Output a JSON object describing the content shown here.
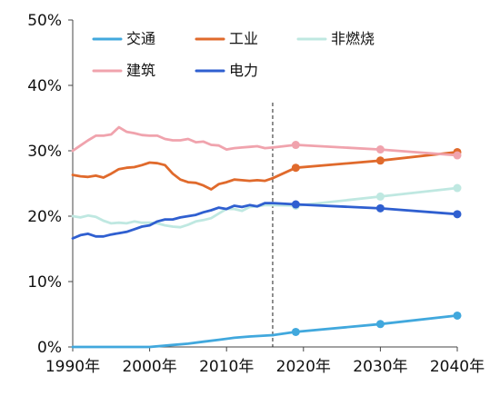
{
  "chart_data": {
    "type": "line",
    "title": "",
    "xlabel": "",
    "ylabel": "",
    "x_ticks": [
      "1990年",
      "2000年",
      "2010年",
      "2020年",
      "2030年",
      "2040年"
    ],
    "y_ticks": [
      "0%",
      "10%",
      "20%",
      "30%",
      "40%",
      "50%"
    ],
    "xlim": [
      1990,
      2040
    ],
    "ylim": [
      0,
      50
    ],
    "grid": false,
    "legend": "top",
    "projection_start": 2016,
    "series": [
      {
        "name": "交通",
        "color": "#41a8dd",
        "historical": [
          [
            1990,
            0
          ],
          [
            1995,
            0
          ],
          [
            2000,
            0
          ],
          [
            2003,
            0.3
          ],
          [
            2005,
            0.5
          ],
          [
            2007,
            0.8
          ],
          [
            2009,
            1.1
          ],
          [
            2011,
            1.4
          ],
          [
            2013,
            1.6
          ],
          [
            2016,
            1.8
          ]
        ],
        "projection": [
          [
            2016,
            1.8
          ],
          [
            2019,
            2.3
          ],
          [
            2030,
            3.5
          ],
          [
            2040,
            4.8
          ]
        ]
      },
      {
        "name": "工业",
        "color": "#e06a2c",
        "historical": [
          [
            1990,
            26.3
          ],
          [
            1991,
            26.1
          ],
          [
            1992,
            26.0
          ],
          [
            1993,
            26.2
          ],
          [
            1994,
            25.9
          ],
          [
            1995,
            26.5
          ],
          [
            1996,
            27.2
          ],
          [
            1997,
            27.4
          ],
          [
            1998,
            27.5
          ],
          [
            1999,
            27.8
          ],
          [
            2000,
            28.2
          ],
          [
            2001,
            28.1
          ],
          [
            2002,
            27.8
          ],
          [
            2003,
            26.5
          ],
          [
            2004,
            25.6
          ],
          [
            2005,
            25.2
          ],
          [
            2006,
            25.1
          ],
          [
            2007,
            24.7
          ],
          [
            2008,
            24.1
          ],
          [
            2009,
            24.9
          ],
          [
            2010,
            25.2
          ],
          [
            2011,
            25.6
          ],
          [
            2012,
            25.5
          ],
          [
            2013,
            25.4
          ],
          [
            2014,
            25.5
          ],
          [
            2015,
            25.4
          ],
          [
            2016,
            25.8
          ]
        ],
        "projection": [
          [
            2016,
            25.8
          ],
          [
            2019,
            27.4
          ],
          [
            2030,
            28.5
          ],
          [
            2040,
            29.8
          ]
        ]
      },
      {
        "name": "非燃烧",
        "color": "#bfe8e1",
        "historical": [
          [
            1990,
            20.0
          ],
          [
            1991,
            19.8
          ],
          [
            1992,
            20.1
          ],
          [
            1993,
            19.9
          ],
          [
            1994,
            19.3
          ],
          [
            1995,
            18.9
          ],
          [
            1996,
            19.0
          ],
          [
            1997,
            18.9
          ],
          [
            1998,
            19.2
          ],
          [
            1999,
            19.0
          ],
          [
            2000,
            19.0
          ],
          [
            2001,
            18.9
          ],
          [
            2002,
            18.6
          ],
          [
            2003,
            18.4
          ],
          [
            2004,
            18.3
          ],
          [
            2005,
            18.7
          ],
          [
            2006,
            19.2
          ],
          [
            2007,
            19.4
          ],
          [
            2008,
            19.7
          ],
          [
            2009,
            20.4
          ],
          [
            2010,
            21.1
          ],
          [
            2011,
            21.1
          ],
          [
            2012,
            20.8
          ],
          [
            2013,
            21.4
          ],
          [
            2014,
            21.5
          ],
          [
            2015,
            21.7
          ],
          [
            2016,
            21.7
          ]
        ],
        "projection": [
          [
            2016,
            21.7
          ],
          [
            2019,
            21.6
          ],
          [
            2030,
            23.0
          ],
          [
            2040,
            24.3
          ]
        ]
      },
      {
        "name": "建筑",
        "color": "#f0a3ad",
        "historical": [
          [
            1990,
            30.0
          ],
          [
            1991,
            30.8
          ],
          [
            1992,
            31.6
          ],
          [
            1993,
            32.3
          ],
          [
            1994,
            32.3
          ],
          [
            1995,
            32.5
          ],
          [
            1996,
            33.6
          ],
          [
            1997,
            32.9
          ],
          [
            1998,
            32.7
          ],
          [
            1999,
            32.4
          ],
          [
            2000,
            32.3
          ],
          [
            2001,
            32.3
          ],
          [
            2002,
            31.8
          ],
          [
            2003,
            31.6
          ],
          [
            2004,
            31.6
          ],
          [
            2005,
            31.8
          ],
          [
            2006,
            31.3
          ],
          [
            2007,
            31.4
          ],
          [
            2008,
            30.9
          ],
          [
            2009,
            30.8
          ],
          [
            2010,
            30.2
          ],
          [
            2011,
            30.4
          ],
          [
            2012,
            30.5
          ],
          [
            2013,
            30.6
          ],
          [
            2014,
            30.7
          ],
          [
            2015,
            30.4
          ],
          [
            2016,
            30.5
          ]
        ],
        "projection": [
          [
            2016,
            30.5
          ],
          [
            2019,
            30.9
          ],
          [
            2030,
            30.2
          ],
          [
            2040,
            29.3
          ]
        ]
      },
      {
        "name": "电力",
        "color": "#2f5fd0",
        "historical": [
          [
            1990,
            16.6
          ],
          [
            1991,
            17.1
          ],
          [
            1992,
            17.3
          ],
          [
            1993,
            16.9
          ],
          [
            1994,
            16.9
          ],
          [
            1995,
            17.2
          ],
          [
            1996,
            17.4
          ],
          [
            1997,
            17.6
          ],
          [
            1998,
            18.0
          ],
          [
            1999,
            18.4
          ],
          [
            2000,
            18.6
          ],
          [
            2001,
            19.2
          ],
          [
            2002,
            19.5
          ],
          [
            2003,
            19.5
          ],
          [
            2004,
            19.8
          ],
          [
            2005,
            20.0
          ],
          [
            2006,
            20.2
          ],
          [
            2007,
            20.6
          ],
          [
            2008,
            20.9
          ],
          [
            2009,
            21.3
          ],
          [
            2010,
            21.1
          ],
          [
            2011,
            21.6
          ],
          [
            2012,
            21.4
          ],
          [
            2013,
            21.7
          ],
          [
            2014,
            21.5
          ],
          [
            2015,
            22.0
          ],
          [
            2016,
            22.0
          ]
        ],
        "projection": [
          [
            2016,
            22.0
          ],
          [
            2019,
            21.8
          ],
          [
            2030,
            21.2
          ],
          [
            2040,
            20.3
          ]
        ]
      }
    ]
  }
}
